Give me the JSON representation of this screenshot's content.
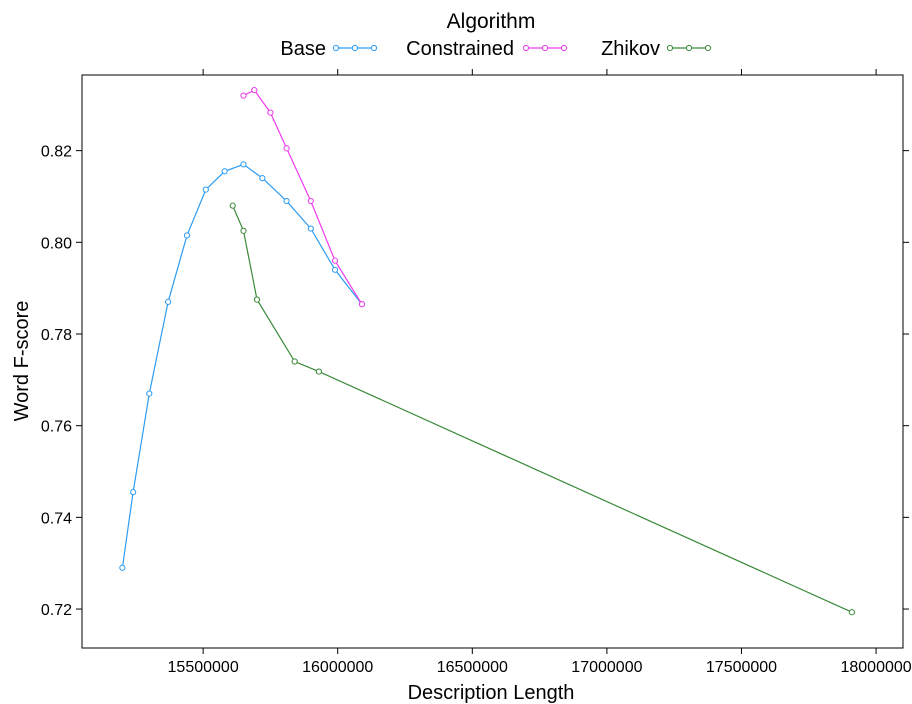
{
  "chart_data": {
    "type": "line",
    "legend_title": "Algorithm",
    "legend_position": "top",
    "xlabel": "Description Length",
    "ylabel": "Word F-score",
    "xlim": [
      15050000,
      18100000
    ],
    "ylim": [
      0.7115,
      0.8365
    ],
    "x_ticks": [
      15500000,
      16000000,
      16500000,
      17000000,
      17500000,
      18000000
    ],
    "x_tick_labels": [
      "15500000",
      "16000000",
      "16500000",
      "17000000",
      "17500000",
      "18000000"
    ],
    "y_ticks": [
      0.72,
      0.74,
      0.76,
      0.78,
      0.8,
      0.82
    ],
    "y_tick_labels": [
      "0.72",
      "0.74",
      "0.76",
      "0.78",
      "0.80",
      "0.82"
    ],
    "grid": false,
    "series": [
      {
        "name": "Base",
        "color": "#2e9cf2",
        "x": [
          15200000,
          15240000,
          15300000,
          15370000,
          15440000,
          15510000,
          15580000,
          15650000,
          15720000,
          15810000,
          15900000,
          15990000,
          16090000
        ],
        "y": [
          0.729,
          0.7455,
          0.767,
          0.787,
          0.8015,
          0.8115,
          0.8155,
          0.817,
          0.814,
          0.809,
          0.803,
          0.794,
          0.7865
        ]
      },
      {
        "name": "Constrained",
        "color": "#ee3cee",
        "x": [
          15650000,
          15690000,
          15750000,
          15810000,
          15900000,
          15990000,
          16090000
        ],
        "y": [
          0.832,
          0.8332,
          0.8283,
          0.8205,
          0.809,
          0.796,
          0.7865
        ]
      },
      {
        "name": "Zhikov",
        "color": "#3a8a3a",
        "x": [
          15610000,
          15650000,
          15700000,
          15840000,
          15930000,
          17910000
        ],
        "y": [
          0.808,
          0.8025,
          0.7875,
          0.774,
          0.7718,
          0.7193
        ]
      }
    ]
  }
}
